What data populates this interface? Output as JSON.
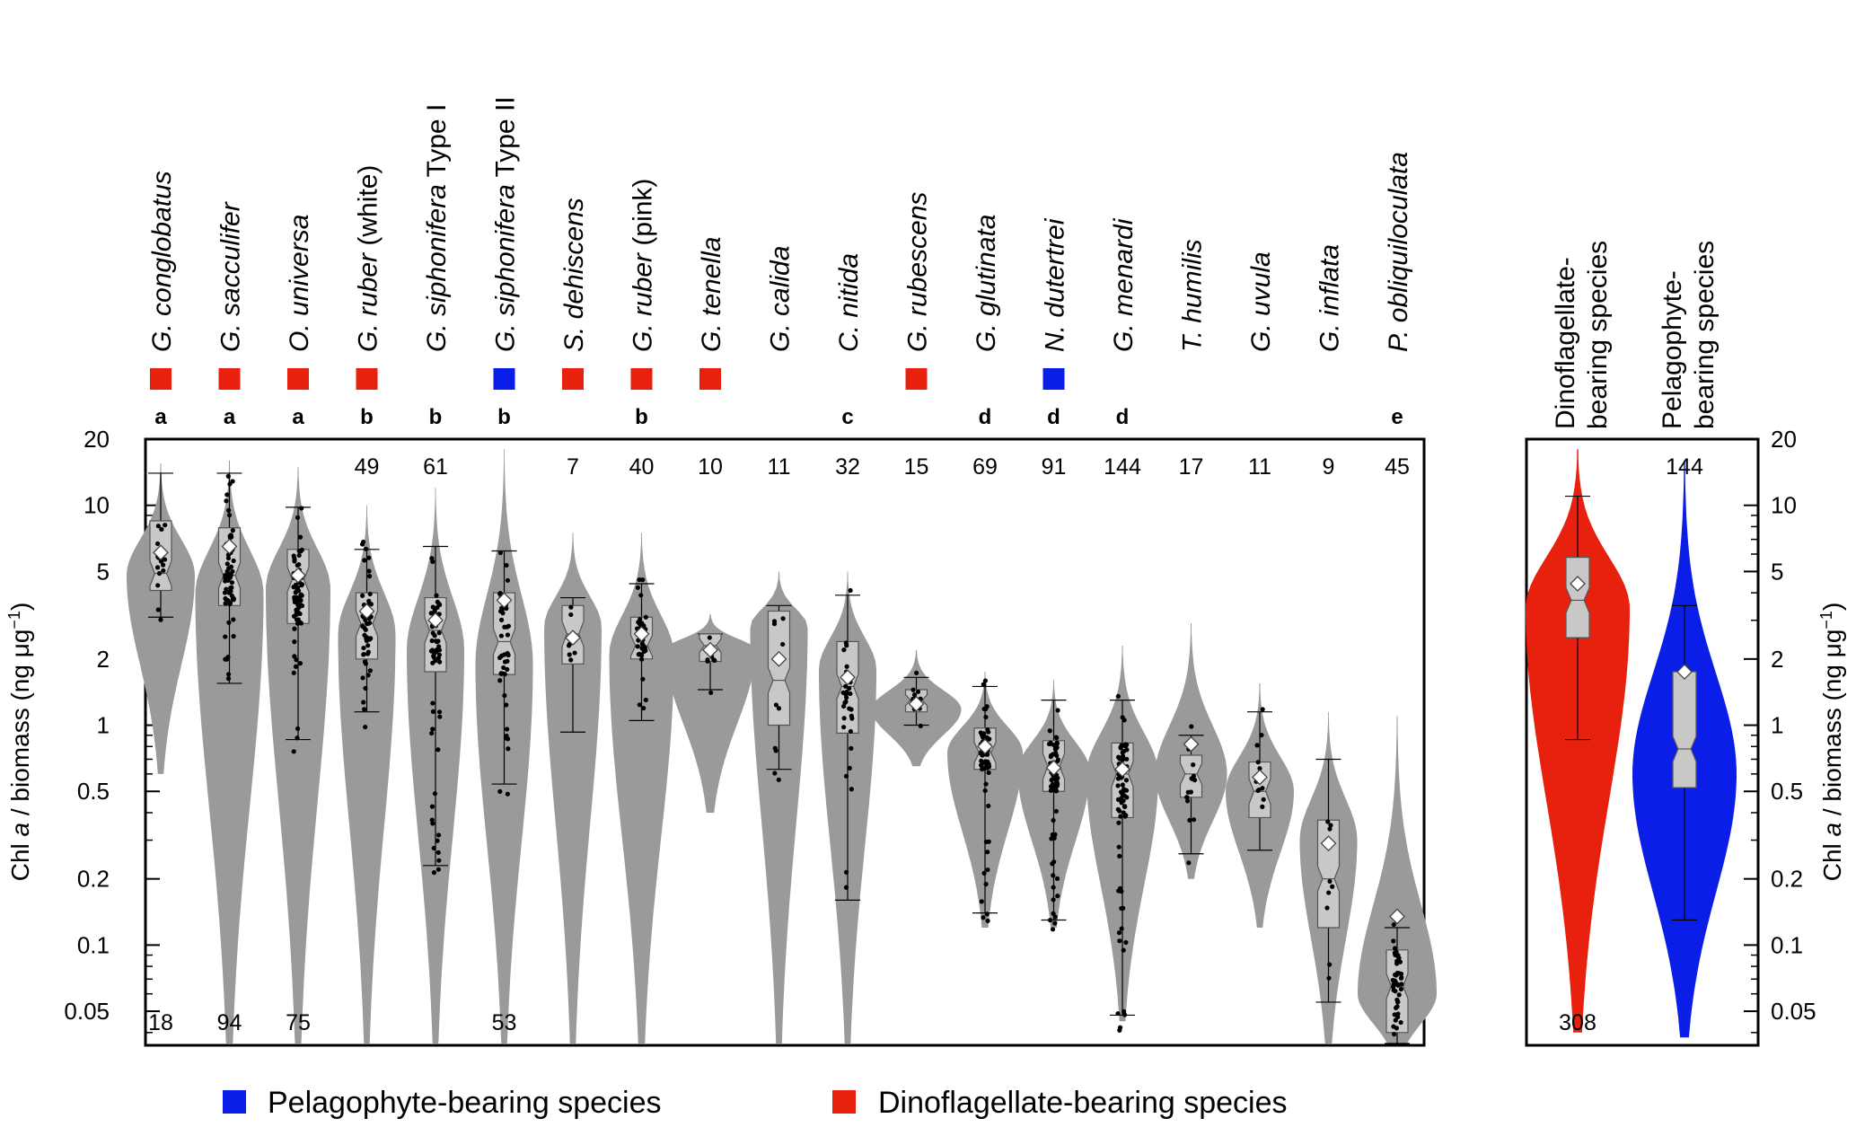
{
  "chart_data": [
    {
      "type": "violin",
      "panel": "per-species",
      "yscale": "log",
      "ylim": [
        0.035,
        20
      ],
      "yticks": [
        0.05,
        0.1,
        0.2,
        0.5,
        1,
        2,
        5,
        10,
        20
      ],
      "ylabel": {
        "pre": "Chl ",
        "italic": "a",
        "post": " / biomass (ng μg",
        "sup": "−1",
        "end": ")"
      },
      "categories": [
        {
          "genus": "G.",
          "species": "conglobatus",
          "suffix": "",
          "marker": "dino",
          "group": "a",
          "n": "18",
          "n_pos": "bottom",
          "q1": 4.1,
          "median": 4.9,
          "q3": 8.5,
          "wlo": 3.1,
          "whi": 14.0,
          "mean": 6.1,
          "vmin": 0.6,
          "vmax": 15.5,
          "vpeak": 4.8,
          "width": 0.95,
          "color": "#9a9a9a"
        },
        {
          "genus": "G.",
          "species": "sacculifer",
          "suffix": "",
          "marker": "dino",
          "group": "a",
          "n": "94",
          "n_pos": "bottom",
          "q1": 3.5,
          "median": 4.8,
          "q3": 7.9,
          "wlo": 1.55,
          "whi": 14.0,
          "mean": 6.5,
          "vmin": 0.03,
          "vmax": 16.0,
          "vpeak": 4.0,
          "width": 0.95,
          "color": "#9a9a9a"
        },
        {
          "genus": "O.",
          "species": "universa",
          "suffix": "",
          "marker": "dino",
          "group": "a",
          "n": "75",
          "n_pos": "bottom",
          "q1": 2.9,
          "median": 4.6,
          "q3": 6.3,
          "wlo": 0.86,
          "whi": 9.8,
          "mean": 4.8,
          "vmin": 0.03,
          "vmax": 15.0,
          "vpeak": 4.2,
          "width": 0.9,
          "color": "#9a9a9a"
        },
        {
          "genus": "G.",
          "species": "ruber",
          "suffix": " (white)",
          "marker": "dino",
          "group": "b",
          "n": "49",
          "n_pos": "top",
          "q1": 2.0,
          "median": 2.9,
          "q3": 4.0,
          "wlo": 1.15,
          "whi": 6.3,
          "mean": 3.3,
          "vmin": 0.03,
          "vmax": 10.0,
          "vpeak": 2.6,
          "width": 0.8,
          "color": "#9a9a9a"
        },
        {
          "genus": "G.",
          "species": "siphonifera",
          "suffix": " Type I",
          "marker": "",
          "group": "b",
          "n": "61",
          "n_pos": "top",
          "q1": 1.75,
          "median": 2.7,
          "q3": 3.8,
          "wlo": 0.23,
          "whi": 6.5,
          "mean": 3.0,
          "vmin": 0.03,
          "vmax": 12.0,
          "vpeak": 2.2,
          "width": 0.8,
          "color": "#9a9a9a"
        },
        {
          "genus": "G.",
          "species": "siphonifera",
          "suffix": " Type II",
          "marker": "pelago",
          "group": "b",
          "n": "53",
          "n_pos": "bottom",
          "q1": 1.7,
          "median": 2.4,
          "q3": 4.0,
          "wlo": 0.54,
          "whi": 6.2,
          "mean": 3.7,
          "vmin": 0.03,
          "vmax": 18.0,
          "vpeak": 1.9,
          "width": 0.8,
          "color": "#9a9a9a"
        },
        {
          "genus": "S.",
          "species": "dehiscens",
          "suffix": "",
          "marker": "dino",
          "group": "",
          "n": "7",
          "n_pos": "top",
          "q1": 1.9,
          "median": 2.6,
          "q3": 3.5,
          "wlo": 0.93,
          "whi": 3.8,
          "mean": 2.5,
          "vmin": 0.03,
          "vmax": 7.5,
          "vpeak": 2.8,
          "width": 0.8,
          "color": "#9a9a9a"
        },
        {
          "genus": "G.",
          "species": "ruber",
          "suffix": " (pink)",
          "marker": "dino",
          "group": "b",
          "n": "40",
          "n_pos": "top",
          "q1": 2.0,
          "median": 2.3,
          "q3": 3.1,
          "wlo": 1.05,
          "whi": 4.4,
          "mean": 2.6,
          "vmin": 0.03,
          "vmax": 7.5,
          "vpeak": 2.1,
          "width": 0.9,
          "color": "#9a9a9a"
        },
        {
          "genus": "G.",
          "species": "tenella",
          "suffix": "",
          "marker": "dino",
          "group": "",
          "n": "10",
          "n_pos": "top",
          "q1": 1.95,
          "median": 2.3,
          "q3": 2.6,
          "wlo": 1.45,
          "whi": 2.6,
          "mean": 2.2,
          "vmin": 0.4,
          "vmax": 3.2,
          "vpeak": 2.2,
          "width": 1.25,
          "color": "#9a9a9a"
        },
        {
          "genus": "G.",
          "species": "calida",
          "suffix": "",
          "marker": "",
          "group": "",
          "n": "11",
          "n_pos": "top",
          "q1": 1.0,
          "median": 1.6,
          "q3": 3.3,
          "wlo": 0.63,
          "whi": 3.5,
          "mean": 2.0,
          "vmin": 0.03,
          "vmax": 5.0,
          "vpeak": 2.8,
          "width": 0.8,
          "color": "#9a9a9a"
        },
        {
          "genus": "C.",
          "species": "nitida",
          "suffix": "",
          "marker": "",
          "group": "c",
          "n": "32",
          "n_pos": "top",
          "q1": 0.92,
          "median": 1.5,
          "q3": 2.4,
          "wlo": 0.16,
          "whi": 3.9,
          "mean": 1.65,
          "vmin": 0.03,
          "vmax": 5.0,
          "vpeak": 1.8,
          "width": 0.8,
          "color": "#9a9a9a"
        },
        {
          "genus": "G.",
          "species": "rubescens",
          "suffix": "",
          "marker": "dino",
          "group": "",
          "n": "15",
          "n_pos": "top",
          "q1": 1.15,
          "median": 1.3,
          "q3": 1.45,
          "wlo": 1.0,
          "whi": 1.65,
          "mean": 1.25,
          "vmin": 0.65,
          "vmax": 2.2,
          "vpeak": 1.18,
          "width": 1.25,
          "color": "#9a9a9a"
        },
        {
          "genus": "G.",
          "species": "glutinata",
          "suffix": "",
          "marker": "",
          "group": "d",
          "n": "69",
          "n_pos": "top",
          "q1": 0.63,
          "median": 0.75,
          "q3": 0.97,
          "wlo": 0.14,
          "whi": 1.5,
          "mean": 0.8,
          "vmin": 0.12,
          "vmax": 1.75,
          "vpeak": 0.75,
          "width": 1.05,
          "color": "#9a9a9a"
        },
        {
          "genus": "N.",
          "species": "dutertrei",
          "suffix": "",
          "marker": "pelago",
          "group": "d",
          "n": "91",
          "n_pos": "top",
          "q1": 0.5,
          "median": 0.65,
          "q3": 0.85,
          "wlo": 0.13,
          "whi": 1.3,
          "mean": 0.64,
          "vmin": 0.12,
          "vmax": 1.6,
          "vpeak": 0.62,
          "width": 1.0,
          "color": "#9a9a9a"
        },
        {
          "genus": "G.",
          "species": "menardi",
          "suffix": "",
          "marker": "",
          "group": "d",
          "n": "144",
          "n_pos": "top",
          "q1": 0.38,
          "median": 0.6,
          "q3": 0.83,
          "wlo": 0.048,
          "whi": 1.3,
          "mean": 0.63,
          "vmin": 0.045,
          "vmax": 2.3,
          "vpeak": 0.6,
          "width": 1.0,
          "color": "#9a9a9a"
        },
        {
          "genus": "T.",
          "species": "humilis",
          "suffix": "",
          "marker": "",
          "group": "",
          "n": "17",
          "n_pos": "top",
          "q1": 0.47,
          "median": 0.6,
          "q3": 0.73,
          "wlo": 0.26,
          "whi": 0.9,
          "mean": 0.82,
          "vmin": 0.2,
          "vmax": 2.9,
          "vpeak": 0.6,
          "width": 1.0,
          "color": "#9a9a9a"
        },
        {
          "genus": "G.",
          "species": "uvula",
          "suffix": "",
          "marker": "",
          "group": "",
          "n": "11",
          "n_pos": "top",
          "q1": 0.38,
          "median": 0.5,
          "q3": 0.68,
          "wlo": 0.27,
          "whi": 1.15,
          "mean": 0.58,
          "vmin": 0.12,
          "vmax": 1.55,
          "vpeak": 0.5,
          "width": 0.95,
          "color": "#9a9a9a"
        },
        {
          "genus": "G.",
          "species": "inflata",
          "suffix": "",
          "marker": "",
          "group": "",
          "n": "9",
          "n_pos": "top",
          "q1": 0.12,
          "median": 0.2,
          "q3": 0.37,
          "wlo": 0.055,
          "whi": 0.7,
          "mean": 0.29,
          "vmin": 0.03,
          "vmax": 1.15,
          "vpeak": 0.3,
          "width": 0.8,
          "color": "#9a9a9a"
        },
        {
          "genus": "P.",
          "species": "obliquiloculata",
          "suffix": "",
          "marker": "",
          "group": "e",
          "n": "45",
          "n_pos": "top",
          "q1": 0.04,
          "median": 0.065,
          "q3": 0.095,
          "wlo": 0.035,
          "whi": 0.12,
          "mean": 0.135,
          "vmin": 0.03,
          "vmax": 1.1,
          "vpeak": 0.06,
          "width": 1.1,
          "color": "#9a9a9a"
        }
      ]
    },
    {
      "type": "violin",
      "panel": "grouped",
      "yscale": "log",
      "ylim": [
        0.035,
        20
      ],
      "yticks": [
        0.05,
        0.1,
        0.2,
        0.5,
        1,
        2,
        5,
        10,
        20
      ],
      "ylabel": {
        "pre": "Chl ",
        "italic": "a",
        "post": " / biomass (ng μg",
        "sup": "−1",
        "end": ")"
      },
      "categories": [
        {
          "line1": "Dinoflagellate-",
          "line2": "bearing species",
          "n": "308",
          "n_pos": "bottom",
          "q1": 2.5,
          "median": 3.7,
          "q3": 5.8,
          "wlo": 0.86,
          "whi": 11.0,
          "mean": 4.4,
          "vmin": 0.04,
          "vmax": 18.0,
          "vpeak": 3.4,
          "width": 1.0,
          "color": "#e8200e"
        },
        {
          "line1": "Pelagophyte-",
          "line2": "bearing species",
          "n": "144",
          "n_pos": "top",
          "q1": 0.52,
          "median": 0.78,
          "q3": 1.75,
          "wlo": 0.13,
          "whi": 3.5,
          "mean": 1.75,
          "vmin": 0.038,
          "vmax": 16.0,
          "vpeak": 0.6,
          "width": 1.0,
          "color": "#0a1ee8"
        }
      ]
    }
  ],
  "legend": {
    "items": [
      {
        "label": "Pelagophyte-bearing species",
        "color": "#0a1ee8"
      },
      {
        "label": "Dinoflagellate-bearing species",
        "color": "#e8200e"
      }
    ]
  },
  "colors": {
    "dino": "#e8200e",
    "pelago": "#0a1ee8",
    "violin_gray": "#9a9a9a",
    "box_fill": "#c8c8c8"
  }
}
